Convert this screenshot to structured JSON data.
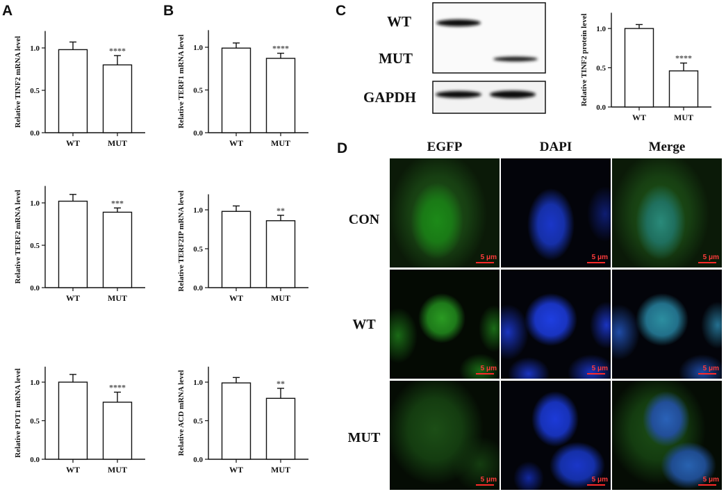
{
  "panels": {
    "a": "A",
    "b": "B",
    "c": "C",
    "d": "D"
  },
  "chart_data": [
    {
      "type": "bar",
      "categories": [
        "WT",
        "MUT"
      ],
      "values": [
        0.98,
        0.8
      ],
      "errors": [
        0.09,
        0.11
      ],
      "ylabel": "Relative TINF2 mRNA level",
      "ylim": [
        0,
        1.2
      ],
      "yticks": [
        "0.0",
        "0.5",
        "1.0"
      ],
      "significance": "****"
    },
    {
      "type": "bar",
      "categories": [
        "WT",
        "MUT"
      ],
      "values": [
        0.99,
        0.87
      ],
      "errors": [
        0.06,
        0.06
      ],
      "ylabel": "Relative TERF1 mRNA level",
      "ylim": [
        0,
        1.2
      ],
      "yticks": [
        "0.0",
        "0.5",
        "1.0"
      ],
      "significance": "****"
    },
    {
      "type": "bar",
      "categories": [
        "WT",
        "MUT"
      ],
      "values": [
        1.02,
        0.89
      ],
      "errors": [
        0.08,
        0.05
      ],
      "ylabel": "Relative TERF2 mRNA level",
      "ylim": [
        0,
        1.2
      ],
      "yticks": [
        "0.0",
        "0.5",
        "1.0"
      ],
      "significance": "***"
    },
    {
      "type": "bar",
      "categories": [
        "WT",
        "MUT"
      ],
      "values": [
        0.98,
        0.86
      ],
      "errors": [
        0.07,
        0.07
      ],
      "ylabel": "Relative TERF2IP mRNA level",
      "ylim": [
        0,
        1.2
      ],
      "yticks": [
        "0.0",
        "0.5",
        "1.0"
      ],
      "significance": "**"
    },
    {
      "type": "bar",
      "categories": [
        "WT",
        "MUT"
      ],
      "values": [
        1.0,
        0.74
      ],
      "errors": [
        0.1,
        0.13
      ],
      "ylabel": "Relative POT1 mRNA level",
      "ylim": [
        0,
        1.2
      ],
      "yticks": [
        "0.0",
        "0.5",
        "1.0"
      ],
      "significance": "****"
    },
    {
      "type": "bar",
      "categories": [
        "WT",
        "MUT"
      ],
      "values": [
        0.99,
        0.79
      ],
      "errors": [
        0.07,
        0.13
      ],
      "ylabel": "Relative ACD mRNA level",
      "ylim": [
        0,
        1.2
      ],
      "yticks": [
        "0.0",
        "0.5",
        "1.0"
      ],
      "significance": "**"
    },
    {
      "type": "bar",
      "categories": [
        "WT",
        "MUT"
      ],
      "values": [
        1.0,
        0.46
      ],
      "errors": [
        0.05,
        0.1
      ],
      "ylabel": "Relative TINF2 protein level",
      "ylim": [
        0,
        1.2
      ],
      "yticks": [
        "0.0",
        "0.5",
        "1.0"
      ],
      "significance": "****"
    }
  ],
  "blot": {
    "rows": [
      "WT",
      "MUT",
      "GAPDH"
    ]
  },
  "microscopy": {
    "columns": [
      "EGFP",
      "DAPI",
      "Merge"
    ],
    "rows": [
      "CON",
      "WT",
      "MUT"
    ],
    "scale_bar": "5 μm"
  }
}
